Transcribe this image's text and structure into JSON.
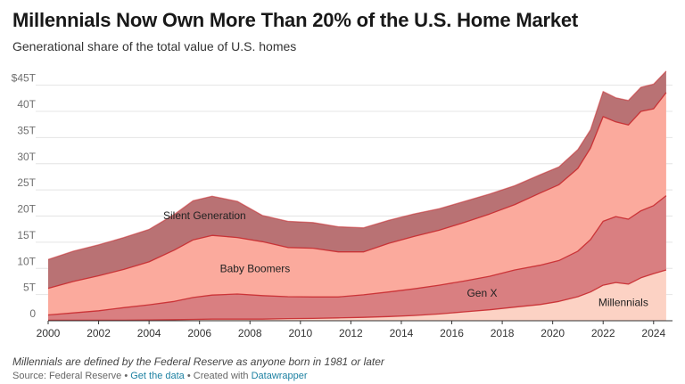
{
  "title": "Millennials Now Own More Than 20% of the U.S. Home Market",
  "subtitle": "Generational share of the total value of U.S. homes",
  "note": "Millennials are defined by the Federal Reserve as anyone born in 1981 or later",
  "footer": {
    "source": "Source: Federal Reserve",
    "sep1": " • ",
    "get_data": "Get the data",
    "sep2": " • Created with ",
    "created_with": "Datawrapper"
  },
  "colors": {
    "millennials": "#fcd2c4",
    "genx": "#d97f81",
    "boomers": "#fbaa9d",
    "silent": "#b97274",
    "line": "#c8292d",
    "grid": "#e4e4e4"
  },
  "chart_data": {
    "type": "area",
    "stacked": true,
    "title": "Millennials Now Own More Than 20% of the U.S. Home Market",
    "subtitle": "Generational share of the total value of U.S. homes",
    "ylim": [
      0,
      48
    ],
    "xlim": [
      2000,
      2024.75
    ],
    "y_ticks": [
      {
        "value": 0,
        "label": "0"
      },
      {
        "value": 5,
        "label": "5T"
      },
      {
        "value": 10,
        "label": "10T"
      },
      {
        "value": 15,
        "label": "15T"
      },
      {
        "value": 20,
        "label": "20T"
      },
      {
        "value": 25,
        "label": "25T"
      },
      {
        "value": 30,
        "label": "30T"
      },
      {
        "value": 35,
        "label": "35T"
      },
      {
        "value": 40,
        "label": "40T"
      },
      {
        "value": 45,
        "label": "$45T"
      }
    ],
    "x_ticks": [
      {
        "value": 2000,
        "label": "2000"
      },
      {
        "value": 2002,
        "label": "2002"
      },
      {
        "value": 2004,
        "label": "2004"
      },
      {
        "value": 2006,
        "label": "2006"
      },
      {
        "value": 2008,
        "label": "2008"
      },
      {
        "value": 2010,
        "label": "2010"
      },
      {
        "value": 2012,
        "label": "2012"
      },
      {
        "value": 2014,
        "label": "2014"
      },
      {
        "value": 2016,
        "label": "2016"
      },
      {
        "value": 2018,
        "label": "2018"
      },
      {
        "value": 2020,
        "label": "2020"
      },
      {
        "value": 2022,
        "label": "2022"
      },
      {
        "value": 2024,
        "label": "2024"
      }
    ],
    "x": [
      2000,
      2001,
      2002,
      2003,
      2004,
      2005,
      2005.75,
      2006.5,
      2007.5,
      2008.5,
      2009.5,
      2010.5,
      2011.5,
      2012.5,
      2013.5,
      2014.5,
      2015.5,
      2016.5,
      2017.5,
      2018.5,
      2019.5,
      2020.25,
      2021,
      2021.5,
      2022,
      2022.5,
      2023,
      2023.5,
      2024,
      2024.5
    ],
    "grid": true,
    "series": [
      {
        "name": "Millennials",
        "values": [
          0.1,
          0.1,
          0.1,
          0.1,
          0.15,
          0.2,
          0.25,
          0.3,
          0.3,
          0.3,
          0.4,
          0.45,
          0.55,
          0.65,
          0.8,
          1.0,
          1.3,
          1.7,
          2.1,
          2.6,
          3.1,
          3.7,
          4.6,
          5.5,
          6.8,
          7.3,
          7.0,
          8.2,
          9.0,
          9.7
        ]
      },
      {
        "name": "Gen X",
        "values": [
          1.0,
          1.4,
          1.8,
          2.4,
          2.9,
          3.5,
          4.2,
          4.6,
          4.8,
          4.5,
          4.2,
          4.1,
          4.0,
          4.3,
          4.7,
          5.1,
          5.5,
          5.9,
          6.4,
          7.1,
          7.5,
          7.8,
          8.7,
          10.0,
          12.2,
          12.6,
          12.4,
          12.8,
          13.0,
          14.2
        ]
      },
      {
        "name": "Baby Boomers",
        "values": [
          5.1,
          6.0,
          6.7,
          7.3,
          8.2,
          9.8,
          11.0,
          11.4,
          10.8,
          10.3,
          9.4,
          9.3,
          8.6,
          8.2,
          9.3,
          10.0,
          10.5,
          11.2,
          11.9,
          12.5,
          13.8,
          14.5,
          15.8,
          17.5,
          20.0,
          18.1,
          18.0,
          19.0,
          18.5,
          19.7
        ]
      },
      {
        "name": "Silent Generation",
        "values": [
          5.5,
          5.8,
          5.9,
          6.1,
          6.2,
          6.8,
          7.5,
          7.5,
          6.9,
          5.0,
          5.0,
          4.9,
          4.8,
          4.6,
          4.4,
          4.3,
          4.1,
          4.0,
          3.8,
          3.6,
          3.5,
          3.4,
          3.6,
          3.5,
          4.8,
          4.6,
          4.7,
          4.6,
          4.7,
          4.1
        ]
      }
    ]
  }
}
